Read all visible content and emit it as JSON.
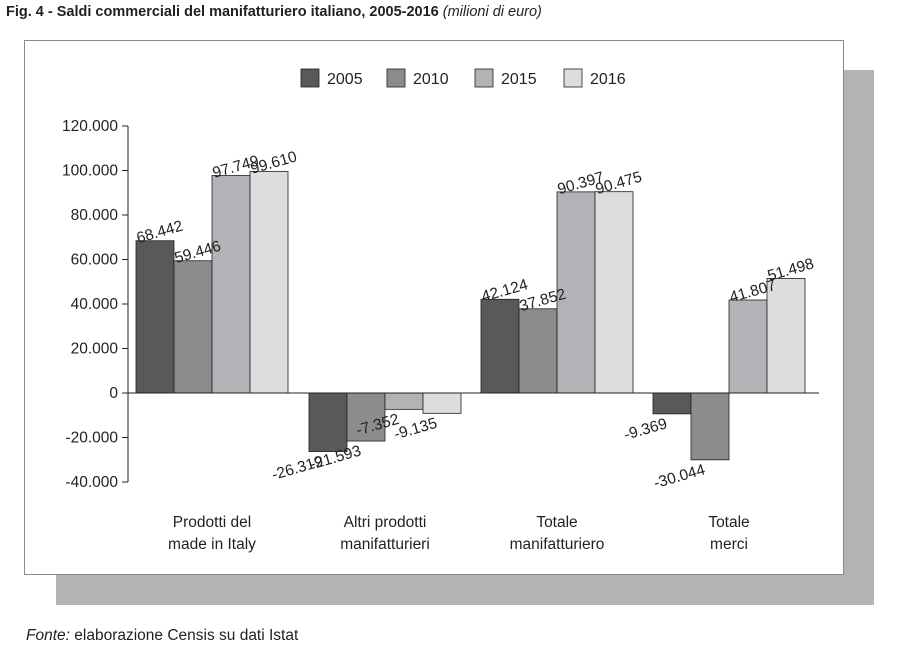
{
  "title": {
    "main": "Fig. 4 - Saldi commerciali del manifatturiero italiano, 2005-2016",
    "unit": "(milioni di euro)"
  },
  "source": {
    "label": "Fonte:",
    "text": "elaborazione Censis su dati Istat"
  },
  "chart_data": {
    "type": "bar",
    "title": "Fig. 4 - Saldi commerciali del manifatturiero italiano, 2005-2016",
    "subtitle": "(milioni di euro)",
    "xlabel": "",
    "ylabel": "",
    "categories": [
      [
        "Prodotti del",
        "made in Italy"
      ],
      [
        "Altri prodotti",
        "manifatturieri"
      ],
      [
        "Totale",
        "manifatturiero"
      ],
      [
        "Totale",
        "merci"
      ]
    ],
    "series": [
      {
        "name": "2005",
        "color": "#58595b",
        "values": [
          68442,
          -26319,
          42124,
          -9369
        ],
        "labels": [
          "68.442",
          "-26.319",
          "42.124",
          "-9.369"
        ]
      },
      {
        "name": "2010",
        "color": "#8a8c8e",
        "values": [
          59446,
          -21593,
          37852,
          -30044
        ],
        "labels": [
          "59.446",
          "-21.593",
          "37.852",
          "-30.044"
        ]
      },
      {
        "name": "2015",
        "color": "#b1b3b6",
        "values": [
          97749,
          -7352,
          90397,
          41807
        ],
        "labels": [
          "97.749",
          "-7.352",
          "90.397",
          "41.807"
        ]
      },
      {
        "name": "2016",
        "color": "#dcdddf",
        "values": [
          99610,
          -9135,
          90475,
          51498
        ],
        "labels": [
          "99.610",
          "-9.135",
          "90.475",
          "51.498"
        ]
      }
    ],
    "ylim": [
      -40000,
      120000
    ],
    "yticks": [
      120000,
      100000,
      80000,
      60000,
      40000,
      20000,
      0,
      -20000,
      -40000
    ],
    "ytick_labels": [
      "120.000",
      "100.000",
      "80.000",
      "60.000",
      "40.000",
      "20.000",
      "0",
      "-20.000",
      "-40.000"
    ],
    "grid": false,
    "legend_position": "top-center",
    "data_labels": "rotated"
  }
}
